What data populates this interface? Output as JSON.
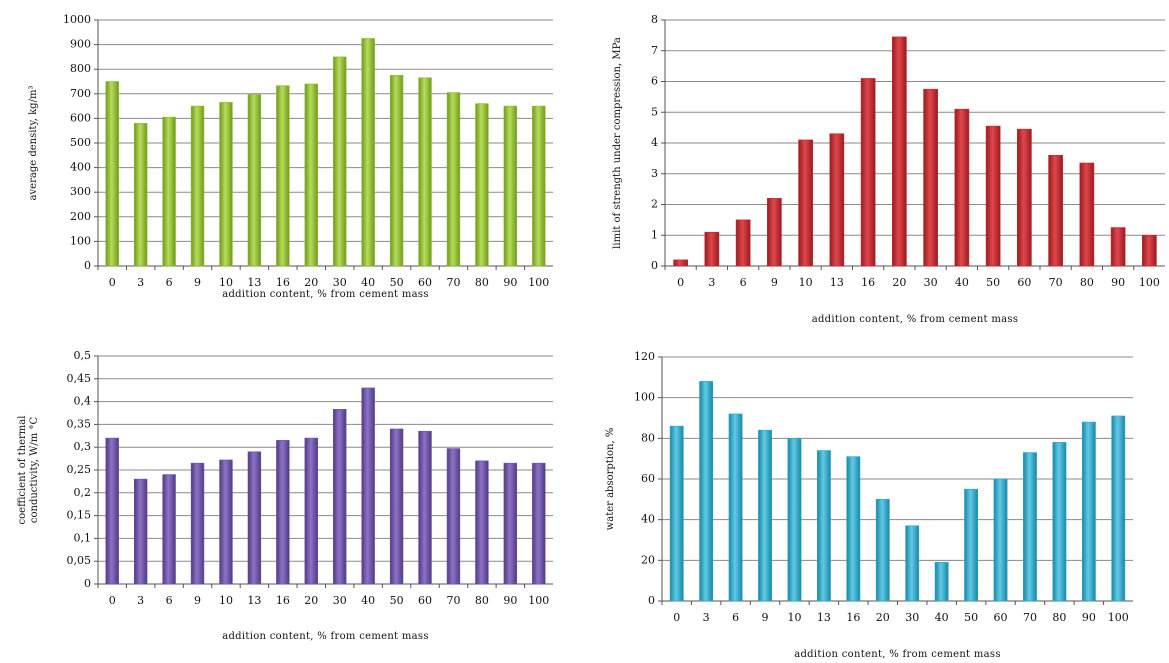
{
  "chart_data": [
    {
      "type": "bar",
      "categories": [
        "0",
        "3",
        "6",
        "9",
        "10",
        "13",
        "16",
        "20",
        "30",
        "40",
        "50",
        "60",
        "70",
        "80",
        "90",
        "100"
      ],
      "values": [
        750,
        580,
        605,
        650,
        665,
        697,
        733,
        740,
        850,
        925,
        775,
        765,
        705,
        660,
        650,
        650
      ],
      "yticks": [
        "0",
        "100",
        "200",
        "300",
        "400",
        "500",
        "600",
        "700",
        "800",
        "900",
        "1000"
      ],
      "xlabel": "addition content, % from cement mass",
      "ylabel": [
        "average density, kg/m³"
      ],
      "ylim": [
        0,
        1000
      ],
      "grid": true,
      "color": "#8dba2f"
    },
    {
      "type": "bar",
      "categories": [
        "0",
        "3",
        "6",
        "9",
        "10",
        "13",
        "16",
        "20",
        "30",
        "40",
        "50",
        "60",
        "70",
        "80",
        "90",
        "100"
      ],
      "values": [
        0.2,
        1.1,
        1.5,
        2.2,
        4.1,
        4.3,
        6.1,
        7.45,
        5.75,
        5.1,
        4.55,
        4.45,
        3.6,
        3.35,
        1.25,
        1.0
      ],
      "yticks": [
        "0",
        "1",
        "2",
        "3",
        "4",
        "5",
        "6",
        "7",
        "8"
      ],
      "xlabel": "addition content, % from cement mass",
      "ylabel": [
        "limit of strength under compression, MPa"
      ],
      "ylim": [
        0,
        8
      ],
      "grid": true,
      "color": "#c1272d"
    },
    {
      "type": "bar",
      "categories": [
        "0",
        "3",
        "6",
        "9",
        "10",
        "13",
        "16",
        "20",
        "30",
        "40",
        "50",
        "60",
        "70",
        "80",
        "90",
        "100"
      ],
      "values": [
        0.32,
        0.23,
        0.24,
        0.265,
        0.272,
        0.29,
        0.315,
        0.32,
        0.383,
        0.43,
        0.34,
        0.335,
        0.297,
        0.27,
        0.265,
        0.265
      ],
      "yticks": [
        "0",
        "0,05",
        "0,1",
        "0,15",
        "0,2",
        "0,25",
        "0,3",
        "0,35",
        "0,4",
        "0,45",
        "0,5"
      ],
      "xlabel": "addition content, % from cement mass",
      "ylabel": [
        "coefficient of thermal",
        "conductivity, W/m °C"
      ],
      "ylim": [
        0,
        0.5
      ],
      "grid": true,
      "color": "#6c4ea6"
    },
    {
      "type": "bar",
      "categories": [
        "0",
        "3",
        "6",
        "9",
        "10",
        "13",
        "16",
        "20",
        "30",
        "40",
        "50",
        "60",
        "70",
        "80",
        "90",
        "100"
      ],
      "values": [
        86,
        108,
        92,
        84,
        80,
        74,
        71,
        50,
        37,
        19,
        55,
        60,
        73,
        78,
        88,
        91
      ],
      "yticks": [
        "0",
        "20",
        "40",
        "60",
        "80",
        "100",
        "120"
      ],
      "xlabel": "addition content, % from cement mass",
      "ylabel": [
        "water absorption, %"
      ],
      "ylim": [
        0,
        120
      ],
      "grid": true,
      "color": "#2aa6c9"
    }
  ]
}
